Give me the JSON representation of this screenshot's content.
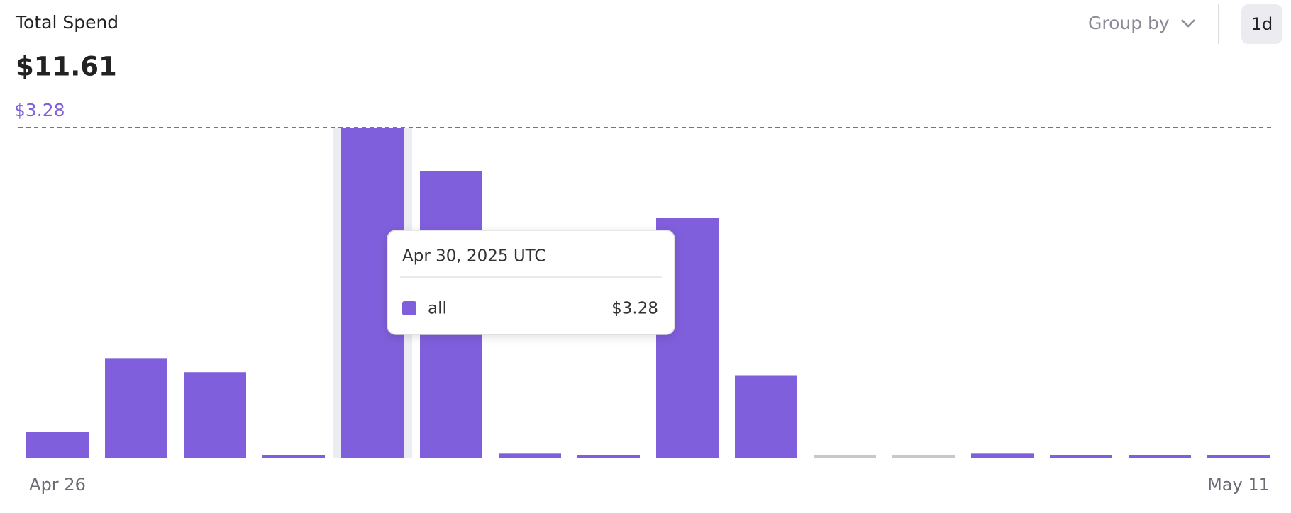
{
  "header": {
    "title": "Total Spend",
    "total": "$11.61",
    "group_by": "Group by",
    "interval": "1d"
  },
  "chart_data": {
    "type": "bar",
    "categories": [
      "Apr 26",
      null,
      null,
      null,
      null,
      null,
      null,
      null,
      null,
      null,
      null,
      null,
      null,
      null,
      null,
      "May 11"
    ],
    "series": [
      {
        "name": "all",
        "color": "#7f5fdb",
        "values": [
          0.26,
          0.99,
          0.85,
          0.02,
          3.28,
          2.85,
          0.04,
          0.02,
          2.38,
          0.82,
          0,
          0,
          0.04,
          0.02,
          0.02,
          0.02
        ]
      }
    ],
    "ylim": [
      0,
      3.28
    ],
    "max_line": {
      "value": 3.28,
      "label": "$3.28"
    },
    "tooltip": {
      "title": "Apr 30, 2025 UTC",
      "series": "all",
      "value_label": "$3.28"
    }
  }
}
